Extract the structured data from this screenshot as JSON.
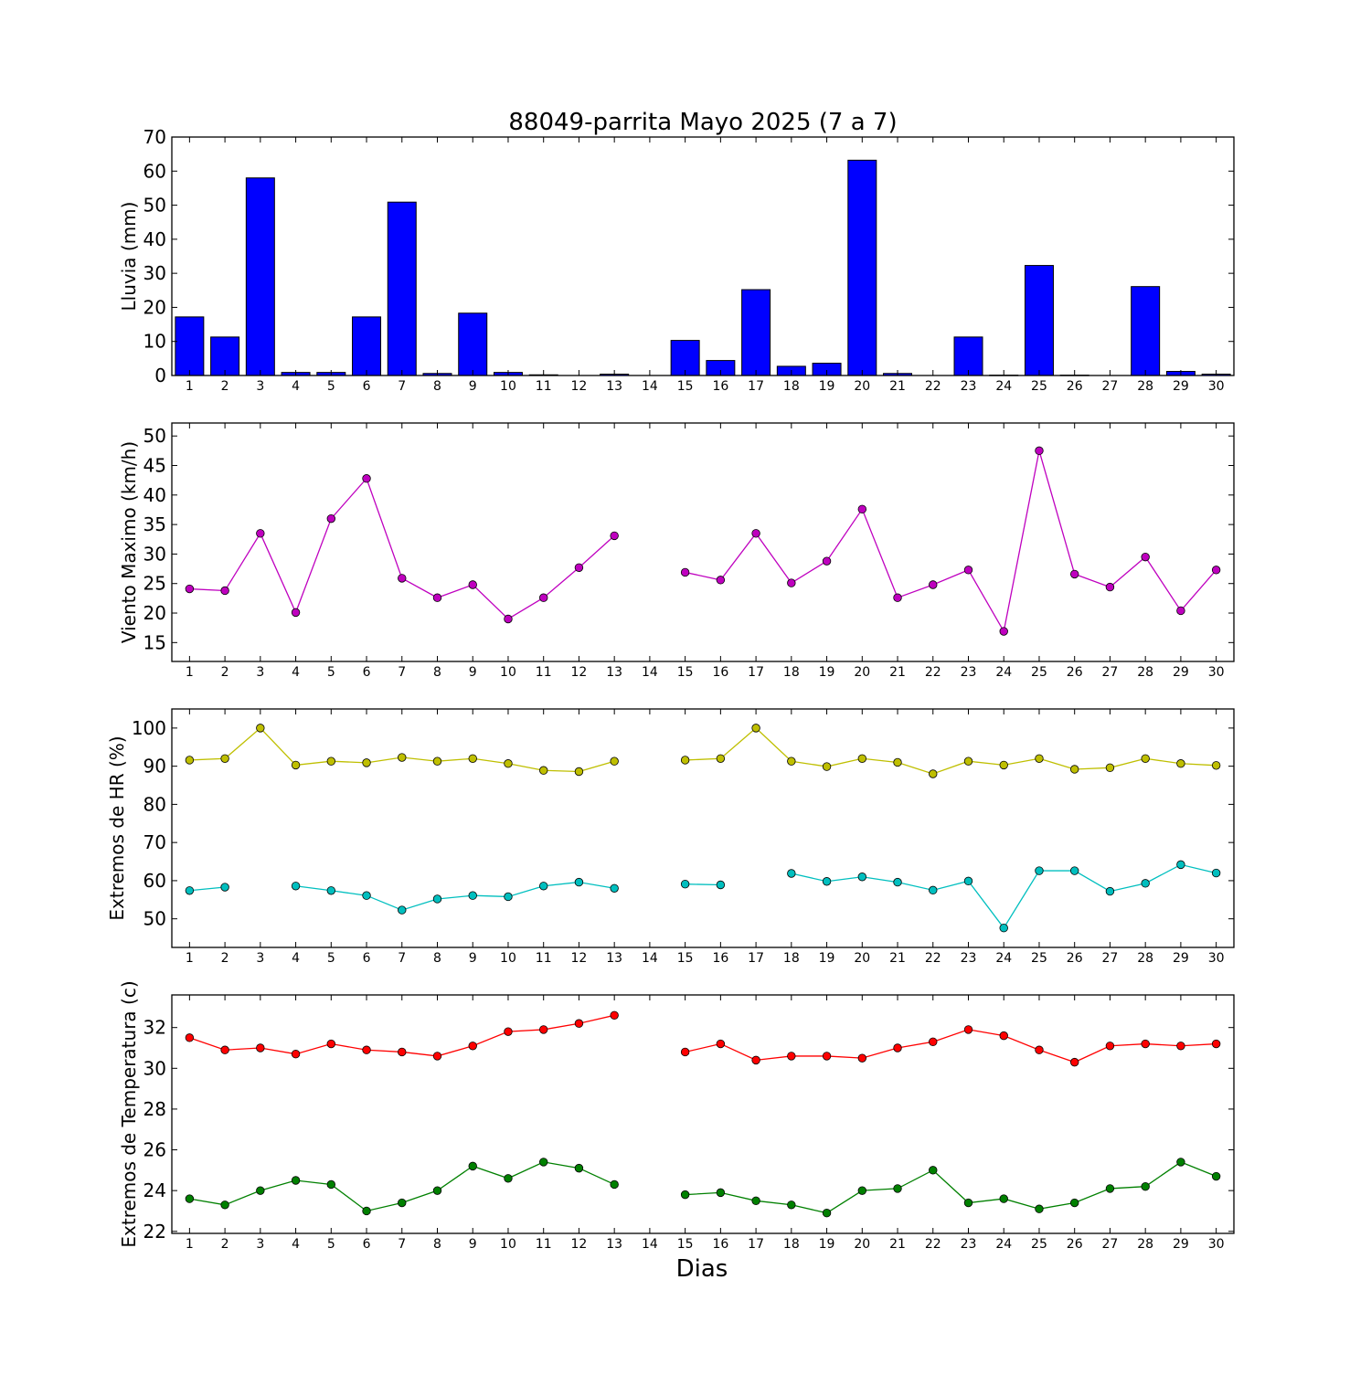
{
  "figure": {
    "title": "88049-parrita Mayo 2025  (7 a 7)",
    "xlabel": "Dias"
  },
  "chart_data": [
    {
      "type": "bar",
      "ylabel": "Lluvia (mm)",
      "ylim": [
        0,
        70
      ],
      "yticks": [
        0,
        10,
        20,
        30,
        40,
        50,
        60,
        70
      ],
      "categories": [
        1,
        2,
        3,
        4,
        5,
        6,
        7,
        8,
        9,
        10,
        11,
        12,
        13,
        14,
        15,
        16,
        17,
        18,
        19,
        20,
        21,
        22,
        23,
        24,
        25,
        26,
        27,
        28,
        29,
        30
      ],
      "series": [
        {
          "color": "#0000ff",
          "values": [
            17.2,
            11.3,
            58.0,
            0.9,
            0.9,
            17.2,
            50.9,
            0.6,
            18.3,
            0.9,
            0.2,
            null,
            0.4,
            null,
            10.3,
            4.4,
            25.2,
            2.7,
            3.6,
            63.2,
            0.6,
            null,
            11.3,
            0.1,
            32.3,
            0.1,
            null,
            26.1,
            1.2,
            0.4
          ]
        }
      ]
    },
    {
      "type": "line",
      "ylabel": "Viento Maximo (km/h)",
      "ylim": [
        11.8,
        52.2
      ],
      "yticks": [
        15,
        20,
        25,
        30,
        35,
        40,
        45,
        50
      ],
      "x": [
        1,
        2,
        3,
        4,
        5,
        6,
        7,
        8,
        9,
        10,
        11,
        12,
        13,
        14,
        15,
        16,
        17,
        18,
        19,
        20,
        21,
        22,
        23,
        24,
        25,
        26,
        27,
        28,
        29,
        30
      ],
      "series": [
        {
          "color": "#bf00bf",
          "values": [
            24.1,
            23.8,
            33.5,
            20.1,
            36.0,
            42.8,
            25.9,
            22.6,
            24.8,
            19.0,
            22.6,
            27.7,
            33.1,
            null,
            26.9,
            25.6,
            33.5,
            25.1,
            28.8,
            37.6,
            22.6,
            24.8,
            27.3,
            16.9,
            47.5,
            26.6,
            24.4,
            29.5,
            20.4,
            27.3
          ]
        }
      ]
    },
    {
      "type": "line",
      "ylabel": "Extremos de HR (%)",
      "ylim": [
        42.5,
        105
      ],
      "yticks": [
        50,
        60,
        70,
        80,
        90,
        100
      ],
      "x": [
        1,
        2,
        3,
        4,
        5,
        6,
        7,
        8,
        9,
        10,
        11,
        12,
        13,
        14,
        15,
        16,
        17,
        18,
        19,
        20,
        21,
        22,
        23,
        24,
        25,
        26,
        27,
        28,
        29,
        30
      ],
      "series": [
        {
          "color": "#bfbf00",
          "values": [
            91.6,
            92.0,
            100.0,
            90.3,
            91.3,
            90.9,
            92.3,
            91.3,
            92.0,
            90.7,
            88.9,
            88.6,
            91.3,
            null,
            91.6,
            92.0,
            100.0,
            91.3,
            89.9,
            92.0,
            91.0,
            88.0,
            91.3,
            90.3,
            92.0,
            89.2,
            89.6,
            92.0,
            90.7,
            90.2
          ]
        },
        {
          "color": "#00bfbf",
          "values": [
            57.4,
            58.3,
            null,
            58.6,
            57.4,
            56.1,
            52.3,
            55.2,
            56.1,
            55.8,
            58.6,
            59.6,
            58.0,
            null,
            59.1,
            58.9,
            null,
            61.9,
            59.8,
            61.0,
            59.6,
            57.5,
            59.9,
            47.6,
            62.6,
            62.6,
            57.2,
            59.3,
            64.2,
            62.0
          ]
        }
      ]
    },
    {
      "type": "line",
      "ylabel": "Extremos de Temperatura (c)",
      "ylim": [
        21.9,
        33.6
      ],
      "yticks": [
        22,
        24,
        26,
        28,
        30,
        32
      ],
      "x": [
        1,
        2,
        3,
        4,
        5,
        6,
        7,
        8,
        9,
        10,
        11,
        12,
        13,
        14,
        15,
        16,
        17,
        18,
        19,
        20,
        21,
        22,
        23,
        24,
        25,
        26,
        27,
        28,
        29,
        30
      ],
      "series": [
        {
          "color": "#ff0000",
          "values": [
            31.5,
            30.9,
            31.0,
            30.7,
            31.2,
            30.9,
            30.8,
            30.6,
            31.1,
            31.8,
            31.9,
            32.2,
            32.6,
            null,
            30.8,
            31.2,
            30.4,
            30.6,
            30.6,
            30.5,
            31.0,
            31.3,
            31.9,
            31.6,
            30.9,
            30.3,
            31.1,
            31.2,
            31.1,
            31.2
          ]
        },
        {
          "color": "#008000",
          "values": [
            23.6,
            23.3,
            24.0,
            24.5,
            24.3,
            23.0,
            23.4,
            24.0,
            25.2,
            24.6,
            25.4,
            25.1,
            24.3,
            null,
            23.8,
            23.9,
            23.5,
            23.3,
            22.9,
            24.0,
            24.1,
            25.0,
            23.4,
            23.6,
            23.1,
            23.4,
            24.1,
            24.2,
            25.4,
            24.7
          ]
        }
      ]
    }
  ]
}
